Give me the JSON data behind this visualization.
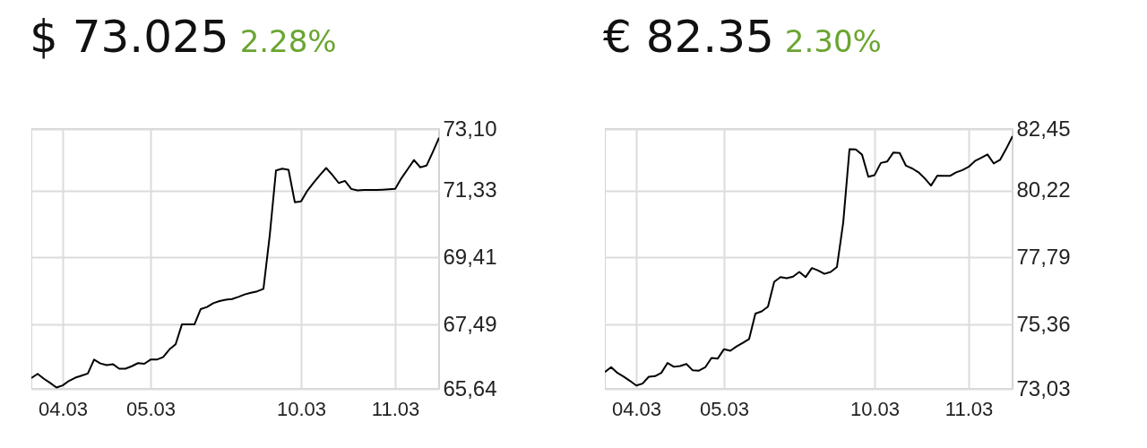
{
  "chart_data": [
    {
      "type": "line",
      "title": "$ 73.025",
      "subtitle": "2.28%",
      "color": "#000000",
      "grid": true,
      "categories": [
        null,
        null,
        null,
        null,
        null,
        "04.03",
        null,
        null,
        null,
        null,
        null,
        null,
        null,
        null,
        null,
        null,
        null,
        null,
        null,
        "05.03",
        null,
        null,
        null,
        null,
        null,
        null,
        null,
        null,
        null,
        null,
        null,
        null,
        null,
        null,
        null,
        null,
        null,
        null,
        null,
        null,
        null,
        null,
        null,
        "10.03",
        null,
        null,
        null,
        null,
        null,
        null,
        null,
        null,
        null,
        null,
        null,
        null,
        null,
        null,
        "11.03",
        null,
        null,
        null,
        null,
        null,
        null,
        null
      ],
      "values": [
        65.95,
        66.07,
        65.93,
        65.81,
        65.68,
        65.74,
        65.87,
        65.96,
        66.02,
        66.08,
        66.48,
        66.37,
        66.32,
        66.35,
        66.22,
        66.22,
        66.29,
        66.38,
        66.36,
        66.48,
        66.48,
        66.55,
        66.77,
        66.92,
        67.49,
        67.49,
        67.49,
        67.93,
        67.99,
        68.1,
        68.16,
        68.2,
        68.22,
        68.28,
        68.35,
        68.4,
        68.44,
        68.51,
        70.04,
        71.91,
        71.96,
        71.93,
        71.0,
        71.02,
        71.33,
        71.56,
        71.78,
        71.98,
        71.78,
        71.55,
        71.61,
        71.38,
        71.34,
        71.35,
        71.35,
        71.35,
        71.36,
        71.37,
        71.38,
        71.69,
        71.95,
        72.21,
        72.0,
        72.05,
        72.44,
        72.85
      ],
      "ylim": [
        65.64,
        73.1
      ],
      "yticks": [
        {
          "value": 65.64,
          "label": "65,64"
        },
        {
          "value": 67.49,
          "label": "67,49"
        },
        {
          "value": 69.41,
          "label": "69,41"
        },
        {
          "value": 71.33,
          "label": "71,33"
        },
        {
          "value": 73.1,
          "label": "73,10"
        }
      ]
    },
    {
      "type": "line",
      "title": "€ 82.35",
      "subtitle": "2.30%",
      "color": "#000000",
      "grid": true,
      "categories": [
        null,
        null,
        null,
        null,
        null,
        "04.03",
        null,
        null,
        null,
        null,
        null,
        null,
        null,
        null,
        null,
        null,
        null,
        null,
        null,
        "05.03",
        null,
        null,
        null,
        null,
        null,
        null,
        null,
        null,
        null,
        null,
        null,
        null,
        null,
        null,
        null,
        null,
        null,
        null,
        null,
        null,
        null,
        null,
        null,
        "10.03",
        null,
        null,
        null,
        null,
        null,
        null,
        null,
        null,
        null,
        null,
        null,
        null,
        null,
        null,
        "11.03",
        null,
        null,
        null,
        null,
        null,
        null,
        null
      ],
      "values": [
        73.64,
        73.82,
        73.61,
        73.47,
        73.32,
        73.15,
        73.22,
        73.47,
        73.49,
        73.61,
        73.97,
        73.83,
        73.86,
        73.93,
        73.7,
        73.69,
        73.81,
        74.15,
        74.13,
        74.47,
        74.41,
        74.57,
        74.7,
        74.84,
        75.76,
        75.84,
        76.01,
        76.91,
        77.08,
        77.04,
        77.1,
        77.27,
        77.08,
        77.41,
        77.32,
        77.2,
        77.27,
        77.45,
        79.06,
        81.72,
        81.71,
        81.52,
        80.72,
        80.78,
        81.22,
        81.27,
        81.6,
        81.58,
        81.12,
        81.02,
        80.88,
        80.66,
        80.4,
        80.76,
        80.75,
        80.75,
        80.88,
        80.96,
        81.08,
        81.29,
        81.41,
        81.53,
        81.2,
        81.33,
        81.74,
        82.19
      ],
      "ylim": [
        73.03,
        82.45
      ],
      "yticks": [
        {
          "value": 73.03,
          "label": "73,03"
        },
        {
          "value": 75.36,
          "label": "75,36"
        },
        {
          "value": 77.79,
          "label": "77,79"
        },
        {
          "value": 80.22,
          "label": "80,22"
        },
        {
          "value": 82.45,
          "label": "82,45"
        }
      ]
    }
  ]
}
